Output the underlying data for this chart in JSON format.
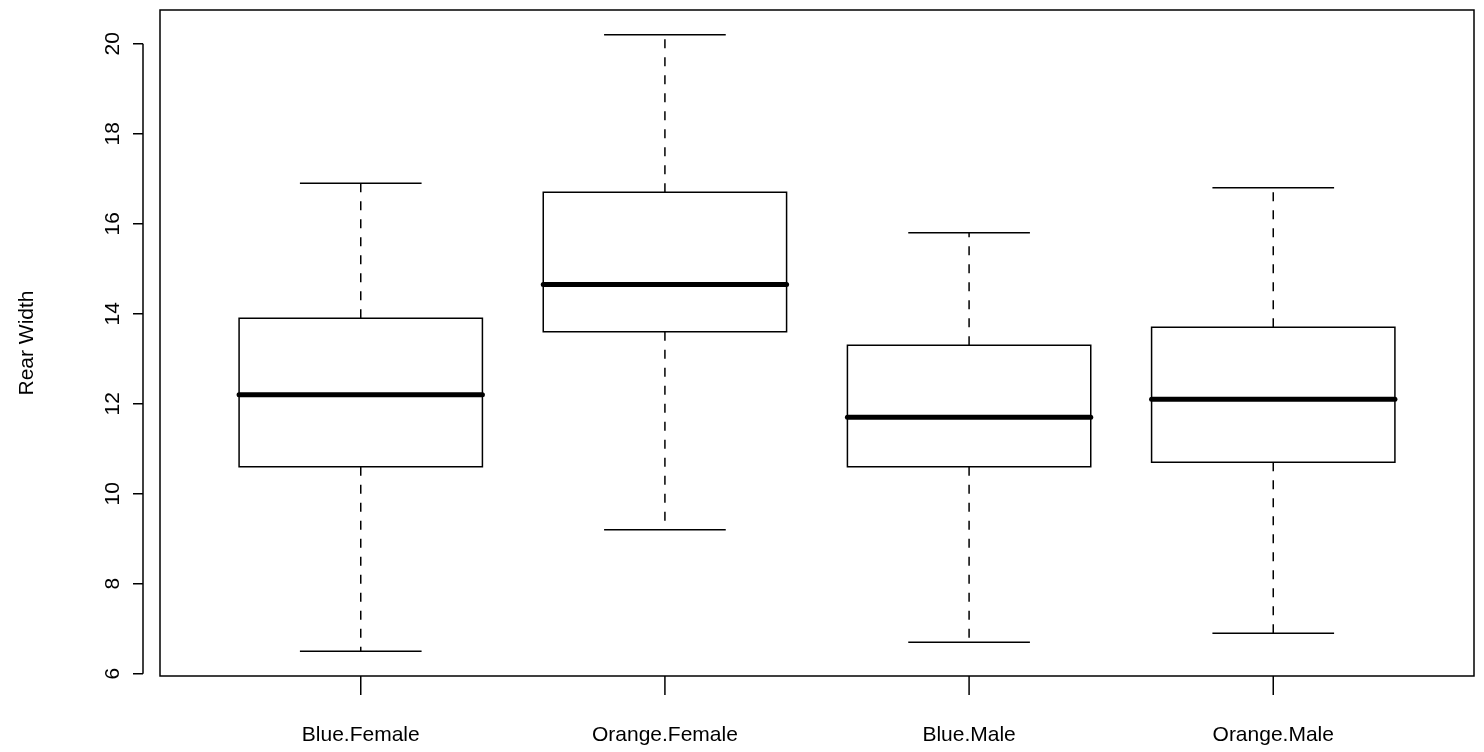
{
  "chart_data": {
    "type": "box",
    "ylabel": "Rear Width",
    "categories": [
      "Blue.Female",
      "Orange.Female",
      "Blue.Male",
      "Orange.Male"
    ],
    "boxes": [
      {
        "low": 6.5,
        "q1": 10.6,
        "median": 12.2,
        "q3": 13.9,
        "high": 16.9
      },
      {
        "low": 9.2,
        "q1": 13.6,
        "median": 14.65,
        "q3": 16.7,
        "high": 20.2
      },
      {
        "low": 6.7,
        "q1": 10.6,
        "median": 11.7,
        "q3": 13.3,
        "high": 15.8
      },
      {
        "low": 6.9,
        "q1": 10.7,
        "median": 12.1,
        "q3": 13.7,
        "high": 16.8
      }
    ],
    "color": "#000000",
    "ylim": [
      5.95,
      20.75
    ],
    "yticks": [
      6,
      8,
      10,
      12,
      14,
      16,
      18,
      20
    ],
    "grid": false
  }
}
